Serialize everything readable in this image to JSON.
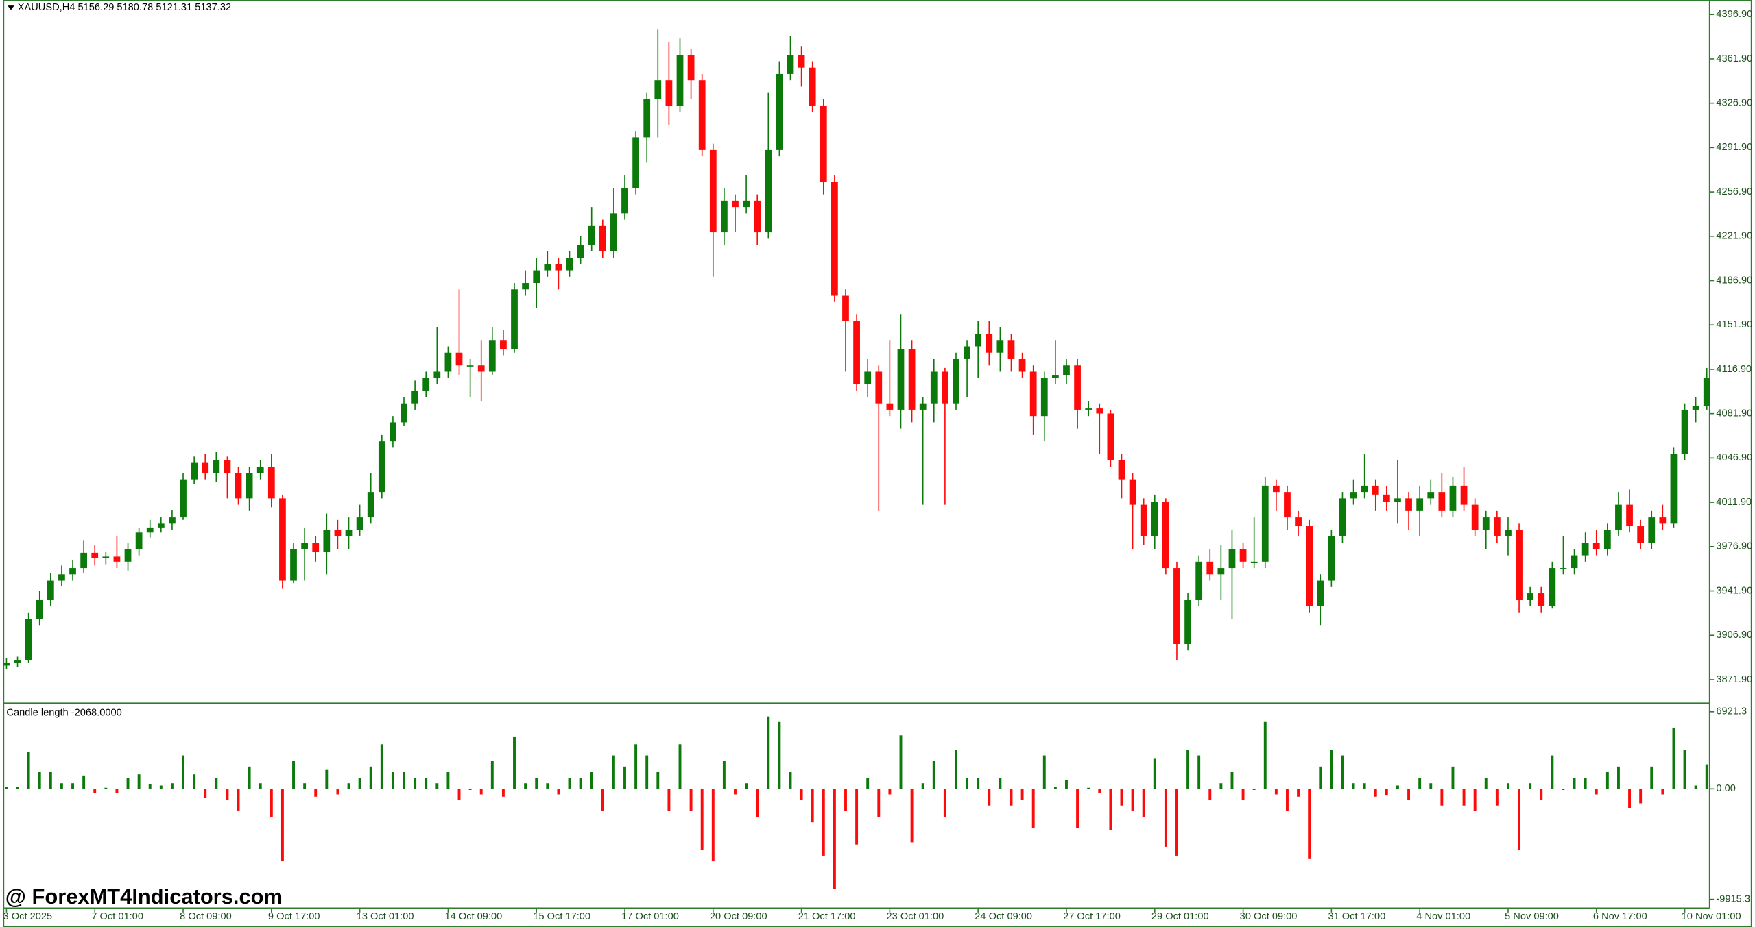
{
  "chart_data": [
    {
      "type": "candlestick",
      "title": "XAUUSD,H4  5156.29 5180.78 5121.31 5137.32",
      "up_color": "#0b7a0b",
      "down_color": "#ff0a0a",
      "ylim": [
        3854.3,
        4407.5
      ],
      "yticks": [
        {
          "value": 4396.9,
          "label": "4396.90"
        },
        {
          "value": 4361.9,
          "label": "4361.90"
        },
        {
          "value": 4326.9,
          "label": "4326.90"
        },
        {
          "value": 4291.9,
          "label": "4291.90"
        },
        {
          "value": 4256.9,
          "label": "4256.90"
        },
        {
          "value": 4221.9,
          "label": "4221.90"
        },
        {
          "value": 4186.9,
          "label": "4186.90"
        },
        {
          "value": 4151.9,
          "label": "4151.90"
        },
        {
          "value": 4116.9,
          "label": "4116.90"
        },
        {
          "value": 4081.9,
          "label": "4081.90"
        },
        {
          "value": 4046.9,
          "label": "4046.90"
        },
        {
          "value": 4011.9,
          "label": "4011.90"
        },
        {
          "value": 3976.9,
          "label": "3976.90"
        },
        {
          "value": 3941.9,
          "label": "3941.90"
        },
        {
          "value": 3906.9,
          "label": "3906.90"
        },
        {
          "value": 3871.9,
          "label": "3871.90"
        }
      ],
      "categories": [
        "3 Oct 2025",
        null,
        null,
        null,
        null,
        null,
        null,
        null,
        "7 Oct 01:00",
        null,
        null,
        null,
        null,
        null,
        null,
        null,
        "8 Oct 09:00",
        null,
        null,
        null,
        null,
        null,
        null,
        null,
        "9 Oct 17:00",
        null,
        null,
        null,
        null,
        null,
        null,
        null,
        "13 Oct 01:00",
        null,
        null,
        null,
        null,
        null,
        null,
        null,
        "14 Oct 09:00",
        null,
        null,
        null,
        null,
        null,
        null,
        null,
        "15 Oct 17:00",
        null,
        null,
        null,
        null,
        null,
        null,
        null,
        "17 Oct 01:00",
        null,
        null,
        null,
        null,
        null,
        null,
        null,
        "20 Oct 09:00",
        null,
        null,
        null,
        null,
        null,
        null,
        null,
        "21 Oct 17:00",
        null,
        null,
        null,
        null,
        null,
        null,
        null,
        "23 Oct 01:00",
        null,
        null,
        null,
        null,
        null,
        null,
        null,
        "24 Oct 09:00",
        null,
        null,
        null,
        null,
        null,
        null,
        null,
        "27 Oct 17:00",
        null,
        null,
        null,
        null,
        null,
        null,
        null,
        "29 Oct 01:00",
        null,
        null,
        null,
        null,
        null,
        null,
        null,
        "30 Oct 09:00",
        null,
        null,
        null,
        null,
        null,
        null,
        null,
        "31 Oct 17:00",
        null,
        null,
        null,
        null,
        null,
        null,
        null,
        "4 Nov 01:00",
        null,
        null,
        null,
        null,
        null,
        null,
        null,
        "5 Nov 09:00",
        null,
        null,
        null,
        null,
        null,
        null,
        null,
        "6 Nov 17:00",
        null,
        null,
        null,
        null,
        null,
        null,
        null,
        "10 Nov 01:00",
        null,
        null
      ],
      "open": [
        3883,
        3885,
        3887,
        3920,
        3935,
        3950,
        3955,
        3960,
        3972,
        3968,
        3969,
        3965,
        3975,
        3988,
        3992,
        3995,
        4000,
        4030,
        4043,
        4035,
        4045,
        4035,
        4015,
        4035,
        4040,
        4015,
        3950,
        3975,
        3980,
        3973,
        3990,
        3985,
        3990,
        4000,
        4020,
        4060,
        4075,
        4090,
        4100,
        4110,
        4115,
        4130,
        4120,
        4120,
        4115,
        4140,
        4133,
        4180,
        4185,
        4195,
        4200,
        4195,
        4205,
        4215,
        4230,
        4210,
        4240,
        4260,
        4300,
        4330,
        4345,
        4325,
        4365,
        4345,
        4290,
        4225,
        4250,
        4245,
        4250,
        4225,
        4290,
        4350,
        4365,
        4355,
        4325,
        4265,
        4175,
        4155,
        4105,
        4115,
        4090,
        4085,
        4133,
        4085,
        4090,
        4115,
        4090,
        4125,
        4135,
        4145,
        4130,
        4140,
        4125,
        4115,
        4080,
        4110,
        4112,
        4120,
        4085,
        4086,
        4082,
        4045,
        4030,
        4010,
        3985,
        4012,
        3960,
        3900,
        3935,
        3965,
        3955,
        3960,
        3975,
        3965,
        3965,
        4025,
        4020,
        4000,
        3993,
        3930,
        3950,
        3985,
        4015,
        4020,
        4025,
        4018,
        4012,
        4015,
        4005,
        4015,
        4020,
        4005,
        4025,
        4010,
        3990,
        4000,
        3985,
        3990,
        3935,
        3940,
        3930,
        3960,
        3960,
        3970,
        3980,
        3975,
        3990,
        4010,
        3993,
        3980,
        4000,
        3995,
        4050,
        4085,
        4088
      ],
      "high": [
        3889,
        3890,
        3925,
        3942,
        3956,
        3962,
        3966,
        3982,
        3978,
        3973,
        3985,
        3980,
        3992,
        3998,
        4000,
        4006,
        4035,
        4048,
        4050,
        4052,
        4048,
        4040,
        4040,
        4045,
        4050,
        4018,
        3980,
        3992,
        3985,
        4003,
        3998,
        4000,
        4010,
        4035,
        4065,
        4080,
        4095,
        4108,
        4115,
        4150,
        4135,
        4180,
        4125,
        4140,
        4150,
        4148,
        4185,
        4195,
        4205,
        4210,
        4205,
        4210,
        4222,
        4245,
        4235,
        4260,
        4270,
        4305,
        4335,
        4385,
        4375,
        4378,
        4370,
        4350,
        4295,
        4260,
        4255,
        4270,
        4255,
        4335,
        4360,
        4380,
        4372,
        4360,
        4330,
        4270,
        4180,
        4160,
        4125,
        4120,
        4140,
        4160,
        4140,
        4095,
        4125,
        4118,
        4130,
        4140,
        4155,
        4155,
        4150,
        4145,
        4130,
        4120,
        4115,
        4140,
        4125,
        4125,
        4092,
        4090,
        4085,
        4050,
        4035,
        4015,
        4018,
        4015,
        3965,
        3940,
        3970,
        3975,
        3978,
        3990,
        3980,
        4000,
        4032,
        4030,
        4025,
        4005,
        3998,
        3955,
        3990,
        4020,
        4030,
        4050,
        4030,
        4025,
        4045,
        4020,
        4025,
        4030,
        4035,
        4032,
        4040,
        4015,
        4005,
        4005,
        4000,
        3995,
        3945,
        3945,
        3965,
        3985,
        3975,
        3988,
        3990,
        3995,
        4020,
        4022,
        3998,
        4005,
        4010,
        4055,
        4090,
        4095,
        4118
      ],
      "low": [
        3880,
        3882,
        3885,
        3915,
        3930,
        3946,
        3950,
        3956,
        3962,
        3963,
        3960,
        3958,
        3970,
        3984,
        3988,
        3990,
        3998,
        4026,
        4030,
        4028,
        4015,
        4010,
        4005,
        4030,
        4008,
        3944,
        3948,
        3950,
        3965,
        3955,
        3975,
        3975,
        3985,
        3995,
        4015,
        4055,
        4072,
        4085,
        4095,
        4105,
        4110,
        4112,
        4095,
        4092,
        4112,
        4128,
        4130,
        4175,
        4165,
        4190,
        4180,
        4190,
        4200,
        4210,
        4205,
        4205,
        4235,
        4255,
        4280,
        4300,
        4310,
        4320,
        4330,
        4285,
        4190,
        4215,
        4225,
        4240,
        4215,
        4220,
        4285,
        4345,
        4340,
        4320,
        4255,
        4170,
        4115,
        4100,
        4095,
        4005,
        4080,
        4070,
        4075,
        4010,
        4075,
        4010,
        4085,
        4095,
        4110,
        4120,
        4115,
        4115,
        4110,
        4065,
        4060,
        4105,
        4105,
        4070,
        4080,
        4050,
        4040,
        4015,
        3975,
        3978,
        3975,
        3955,
        3887,
        3895,
        3930,
        3950,
        3935,
        3920,
        3960,
        3960,
        3960,
        4005,
        3990,
        3985,
        3925,
        3915,
        3945,
        3980,
        4010,
        4015,
        4005,
        4005,
        3995,
        3990,
        3985,
        4010,
        4000,
        4000,
        4005,
        3985,
        3975,
        3980,
        3970,
        3925,
        3930,
        3925,
        3928,
        3955,
        3955,
        3965,
        3970,
        3970,
        3985,
        3988,
        3975,
        3975,
        3990,
        3992,
        4045,
        4075,
        4085
      ],
      "close": [
        3885,
        3887,
        3920,
        3935,
        3950,
        3955,
        3960,
        3972,
        3968,
        3969,
        3965,
        3975,
        3988,
        3992,
        3995,
        4000,
        4030,
        4043,
        4035,
        4045,
        4035,
        4015,
        4035,
        4040,
        4015,
        3950,
        3975,
        3980,
        3973,
        3990,
        3985,
        3990,
        4000,
        4020,
        4060,
        4075,
        4090,
        4100,
        4110,
        4115,
        4130,
        4120,
        4120,
        4115,
        4140,
        4133,
        4180,
        4185,
        4195,
        4200,
        4195,
        4205,
        4215,
        4230,
        4210,
        4240,
        4260,
        4300,
        4330,
        4345,
        4325,
        4365,
        4345,
        4290,
        4225,
        4250,
        4245,
        4250,
        4225,
        4290,
        4350,
        4365,
        4355,
        4325,
        4265,
        4175,
        4155,
        4105,
        4115,
        4090,
        4085,
        4133,
        4085,
        4090,
        4115,
        4090,
        4125,
        4135,
        4145,
        4130,
        4140,
        4125,
        4115,
        4080,
        4110,
        4112,
        4120,
        4085,
        4086,
        4082,
        4045,
        4030,
        4010,
        3985,
        4012,
        3960,
        3900,
        3935,
        3965,
        3955,
        3960,
        3975,
        3965,
        3965,
        4025,
        4020,
        4000,
        3993,
        3930,
        3950,
        3985,
        4015,
        4020,
        4025,
        4018,
        4012,
        4015,
        4005,
        4015,
        4020,
        4005,
        4025,
        4010,
        3990,
        4000,
        3985,
        3990,
        3935,
        3940,
        3930,
        3960,
        3960,
        3970,
        3980,
        3975,
        3990,
        4010,
        3993,
        3980,
        4000,
        3995,
        4050,
        4085,
        4088,
        4110
      ]
    },
    {
      "type": "bar",
      "title": "Candle length -2068.0000",
      "up_color": "#0b7a0b",
      "down_color": "#ff0a0a",
      "ylim": [
        -10700,
        7500
      ],
      "yticks": [
        6921.3,
        {
          "value": 0,
          "label": "0.00"
        },
        -9915.3
      ],
      "values": [
        200,
        200,
        3300,
        1500,
        1500,
        500,
        500,
        1200,
        -400,
        100,
        -400,
        1000,
        1300,
        400,
        300,
        500,
        3000,
        1300,
        -800,
        1000,
        -1000,
        -2000,
        2000,
        500,
        -2500,
        -6500,
        2500,
        500,
        -700,
        1700,
        -500,
        500,
        1000,
        2000,
        4000,
        1500,
        1500,
        1000,
        1000,
        500,
        1500,
        -1000,
        0,
        -500,
        2500,
        -700,
        4700,
        500,
        1000,
        500,
        -500,
        1000,
        1000,
        1500,
        -2000,
        3000,
        2000,
        4000,
        3000,
        1500,
        -2000,
        4000,
        -2000,
        -5500,
        -6500,
        2500,
        -500,
        500,
        -2500,
        6500,
        6000,
        1500,
        -1000,
        -3000,
        -6000,
        -9000,
        -2000,
        -5000,
        1000,
        -2500,
        -500,
        4800,
        -4800,
        500,
        2500,
        -2500,
        3500,
        1000,
        1000,
        -1500,
        1000,
        -1500,
        -1000,
        -3500,
        3000,
        200,
        800,
        -3500,
        100,
        -400,
        -3700,
        -1500,
        -2000,
        -2500,
        2700,
        -5200,
        -6000,
        3500,
        3000,
        -1000,
        500,
        1500,
        -1000,
        0,
        6000,
        -500,
        -2000,
        -700,
        -6300,
        2000,
        3500,
        3000,
        500,
        500,
        -700,
        -600,
        300,
        -1000,
        1000,
        500,
        -1500,
        2000,
        -1500,
        -2000,
        1000,
        -1500,
        500,
        -5500,
        500,
        -1000,
        3000,
        0,
        1000,
        1000,
        -500,
        1500,
        2000,
        -1700,
        -1300,
        2000,
        -500,
        5500,
        3500,
        300,
        2200
      ]
    }
  ],
  "watermark": "@ ForexMT4Indicators.com"
}
